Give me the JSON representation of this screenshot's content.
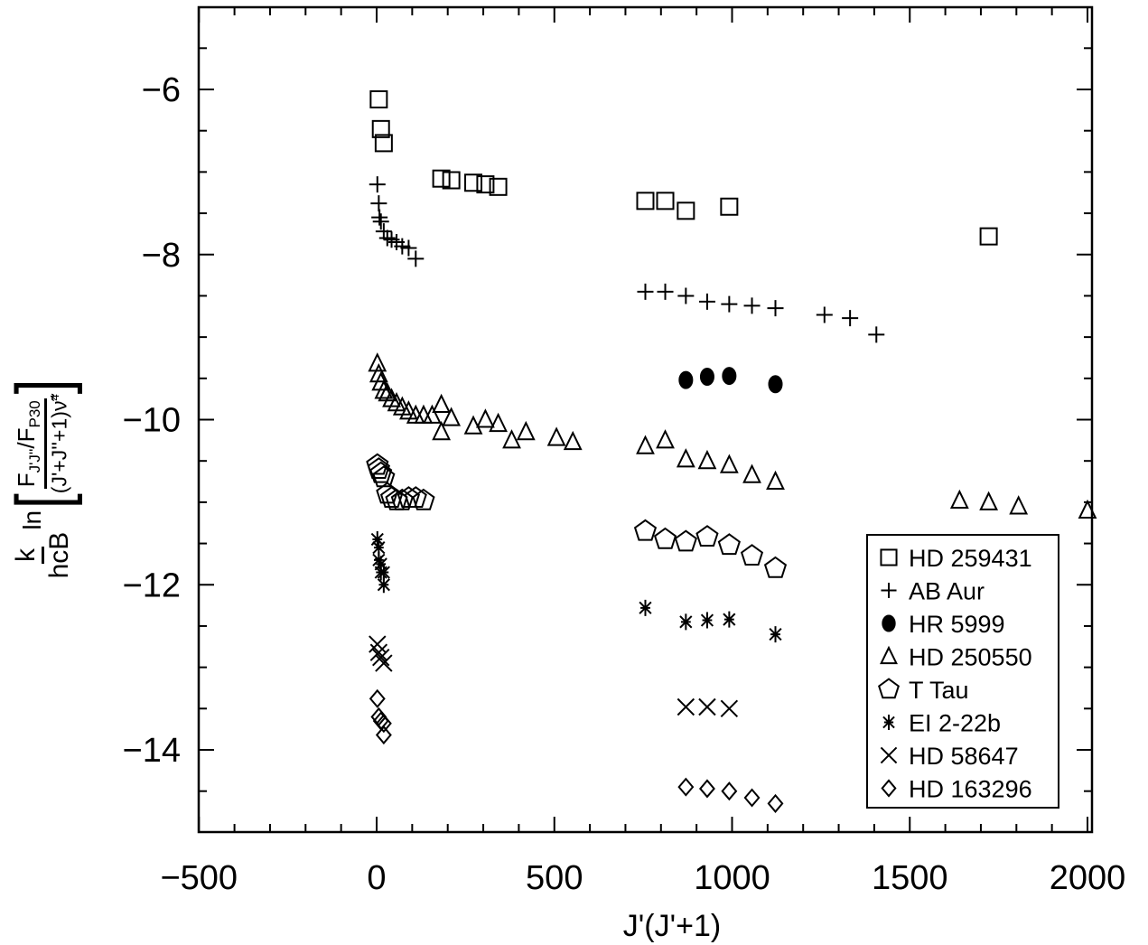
{
  "chart_data": {
    "type": "scatter",
    "xlabel": "J'(J'+1)",
    "ylabel": {
      "prefix_num": "k",
      "prefix_den": "hcB",
      "ln": "ln",
      "ratio_num_F": "F",
      "ratio_num_sub": "J'J''",
      "ratio_num_slash": "/F",
      "ratio_num_sub2": "P30",
      "ratio_den": "(J'+J''+1)",
      "ratio_den_nu": "ν̃",
      "ratio_den_pow": "4"
    },
    "xlim": [
      -500,
      2000
    ],
    "ylim": [
      -15,
      -5
    ],
    "x_ticks": [
      -500,
      0,
      500,
      1000,
      1500,
      2000
    ],
    "x_tick_labels": [
      "−500",
      "0",
      "500",
      "1000",
      "1500",
      "2000"
    ],
    "y_ticks": [
      -14,
      -12,
      -10,
      -8,
      -6
    ],
    "y_tick_labels": [
      "−14",
      "−12",
      "−10",
      "−8",
      "−6"
    ],
    "legend_position": "lower-right",
    "series": [
      {
        "name": "HD 259431",
        "marker": "square",
        "points": [
          [
            6,
            -6.12
          ],
          [
            12,
            -6.48
          ],
          [
            20,
            -6.65
          ],
          [
            182,
            -7.08
          ],
          [
            210,
            -7.1
          ],
          [
            272,
            -7.13
          ],
          [
            306,
            -7.15
          ],
          [
            342,
            -7.18
          ],
          [
            756,
            -7.35
          ],
          [
            812,
            -7.35
          ],
          [
            870,
            -7.47
          ],
          [
            992,
            -7.42
          ],
          [
            1722,
            -7.78
          ]
        ]
      },
      {
        "name": "AB Aur",
        "marker": "plus",
        "points": [
          [
            2,
            -7.15
          ],
          [
            6,
            -7.38
          ],
          [
            8,
            -7.55
          ],
          [
            12,
            -7.6
          ],
          [
            20,
            -7.72
          ],
          [
            30,
            -7.8
          ],
          [
            42,
            -7.82
          ],
          [
            56,
            -7.85
          ],
          [
            72,
            -7.9
          ],
          [
            90,
            -7.92
          ],
          [
            110,
            -8.05
          ],
          [
            756,
            -8.45
          ],
          [
            812,
            -8.45
          ],
          [
            870,
            -8.5
          ],
          [
            930,
            -8.57
          ],
          [
            992,
            -8.6
          ],
          [
            1056,
            -8.62
          ],
          [
            1122,
            -8.65
          ],
          [
            1260,
            -8.73
          ],
          [
            1332,
            -8.77
          ],
          [
            1406,
            -8.97
          ]
        ]
      },
      {
        "name": "HR 5999",
        "marker": "filled-circle",
        "points": [
          [
            870,
            -9.52
          ],
          [
            930,
            -9.48
          ],
          [
            992,
            -9.47
          ],
          [
            1122,
            -9.57
          ]
        ]
      },
      {
        "name": "HD 250550",
        "marker": "triangle",
        "points": [
          [
            2,
            -9.32
          ],
          [
            6,
            -9.45
          ],
          [
            12,
            -9.55
          ],
          [
            20,
            -9.65
          ],
          [
            30,
            -9.68
          ],
          [
            42,
            -9.75
          ],
          [
            56,
            -9.8
          ],
          [
            72,
            -9.85
          ],
          [
            90,
            -9.9
          ],
          [
            110,
            -9.95
          ],
          [
            132,
            -9.95
          ],
          [
            156,
            -9.95
          ],
          [
            182,
            -9.82
          ],
          [
            182,
            -10.15
          ],
          [
            210,
            -9.98
          ],
          [
            272,
            -10.08
          ],
          [
            306,
            -10.0
          ],
          [
            342,
            -10.05
          ],
          [
            380,
            -10.25
          ],
          [
            420,
            -10.15
          ],
          [
            506,
            -10.22
          ],
          [
            552,
            -10.27
          ],
          [
            756,
            -10.32
          ],
          [
            812,
            -10.25
          ],
          [
            870,
            -10.48
          ],
          [
            930,
            -10.5
          ],
          [
            992,
            -10.55
          ],
          [
            1056,
            -10.67
          ],
          [
            1122,
            -10.75
          ],
          [
            1640,
            -10.98
          ],
          [
            1722,
            -11.0
          ],
          [
            1806,
            -11.05
          ],
          [
            2000,
            -11.1
          ]
        ]
      },
      {
        "name": "T Tau",
        "marker": "pentagon",
        "points": [
          [
            2,
            -10.55
          ],
          [
            6,
            -10.6
          ],
          [
            12,
            -10.65
          ],
          [
            20,
            -10.7
          ],
          [
            30,
            -10.9
          ],
          [
            42,
            -10.95
          ],
          [
            56,
            -10.98
          ],
          [
            72,
            -10.98
          ],
          [
            90,
            -10.95
          ],
          [
            110,
            -10.95
          ],
          [
            132,
            -10.98
          ],
          [
            756,
            -11.35
          ],
          [
            812,
            -11.45
          ],
          [
            870,
            -11.48
          ],
          [
            930,
            -11.42
          ],
          [
            992,
            -11.52
          ],
          [
            1056,
            -11.65
          ],
          [
            1122,
            -11.8
          ]
        ]
      },
      {
        "name": "EI 2-22b",
        "marker": "asterisk",
        "points": [
          [
            2,
            -11.45
          ],
          [
            6,
            -11.55
          ],
          [
            6,
            -11.7
          ],
          [
            12,
            -11.75
          ],
          [
            12,
            -11.85
          ],
          [
            20,
            -11.85
          ],
          [
            20,
            -12.0
          ],
          [
            756,
            -12.28
          ],
          [
            870,
            -12.45
          ],
          [
            930,
            -12.43
          ],
          [
            992,
            -12.42
          ],
          [
            1122,
            -12.6
          ]
        ]
      },
      {
        "name": "HD 58647",
        "marker": "x",
        "points": [
          [
            2,
            -12.72
          ],
          [
            6,
            -12.82
          ],
          [
            12,
            -12.88
          ],
          [
            20,
            -12.95
          ],
          [
            870,
            -13.48
          ],
          [
            930,
            -13.48
          ],
          [
            992,
            -13.5
          ]
        ]
      },
      {
        "name": "HD 163296",
        "marker": "diamond",
        "points": [
          [
            2,
            -13.38
          ],
          [
            6,
            -13.6
          ],
          [
            12,
            -13.65
          ],
          [
            20,
            -13.68
          ],
          [
            20,
            -13.82
          ],
          [
            870,
            -14.45
          ],
          [
            930,
            -14.47
          ],
          [
            992,
            -14.5
          ],
          [
            1056,
            -14.58
          ],
          [
            1122,
            -14.65
          ]
        ]
      }
    ]
  }
}
